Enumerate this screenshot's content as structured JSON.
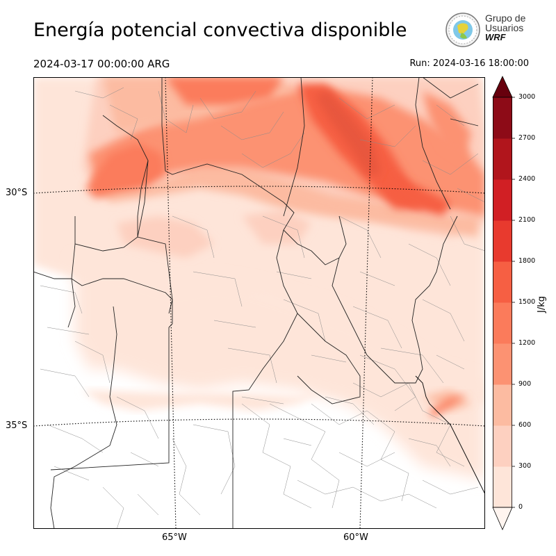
{
  "header": {
    "title": "Energía potencial convectiva disponible",
    "valid_time": "2024-03-17 00:00:00 ARG",
    "run_time": "Run: 2024-03-16 18:00:00"
  },
  "logo": {
    "line1": "Grupo de",
    "line2": "Usuarios",
    "line3": "WRF"
  },
  "map": {
    "lat_labels": [
      "30°S",
      "35°S"
    ],
    "lon_labels": [
      "65°W",
      "60°W"
    ]
  },
  "colorbar": {
    "unit": "J/kg",
    "ticks": [
      "0",
      "300",
      "600",
      "900",
      "1200",
      "1500",
      "1800",
      "2100",
      "2400",
      "2700",
      "3000"
    ],
    "colors": [
      "#fee5d9",
      "#fdd0c0",
      "#fcbba1",
      "#fc9272",
      "#fb7b5b",
      "#f65f43",
      "#e83a2e",
      "#d11f24",
      "#b1151c",
      "#8d0b17",
      "#67000d"
    ],
    "extend": "both"
  }
}
